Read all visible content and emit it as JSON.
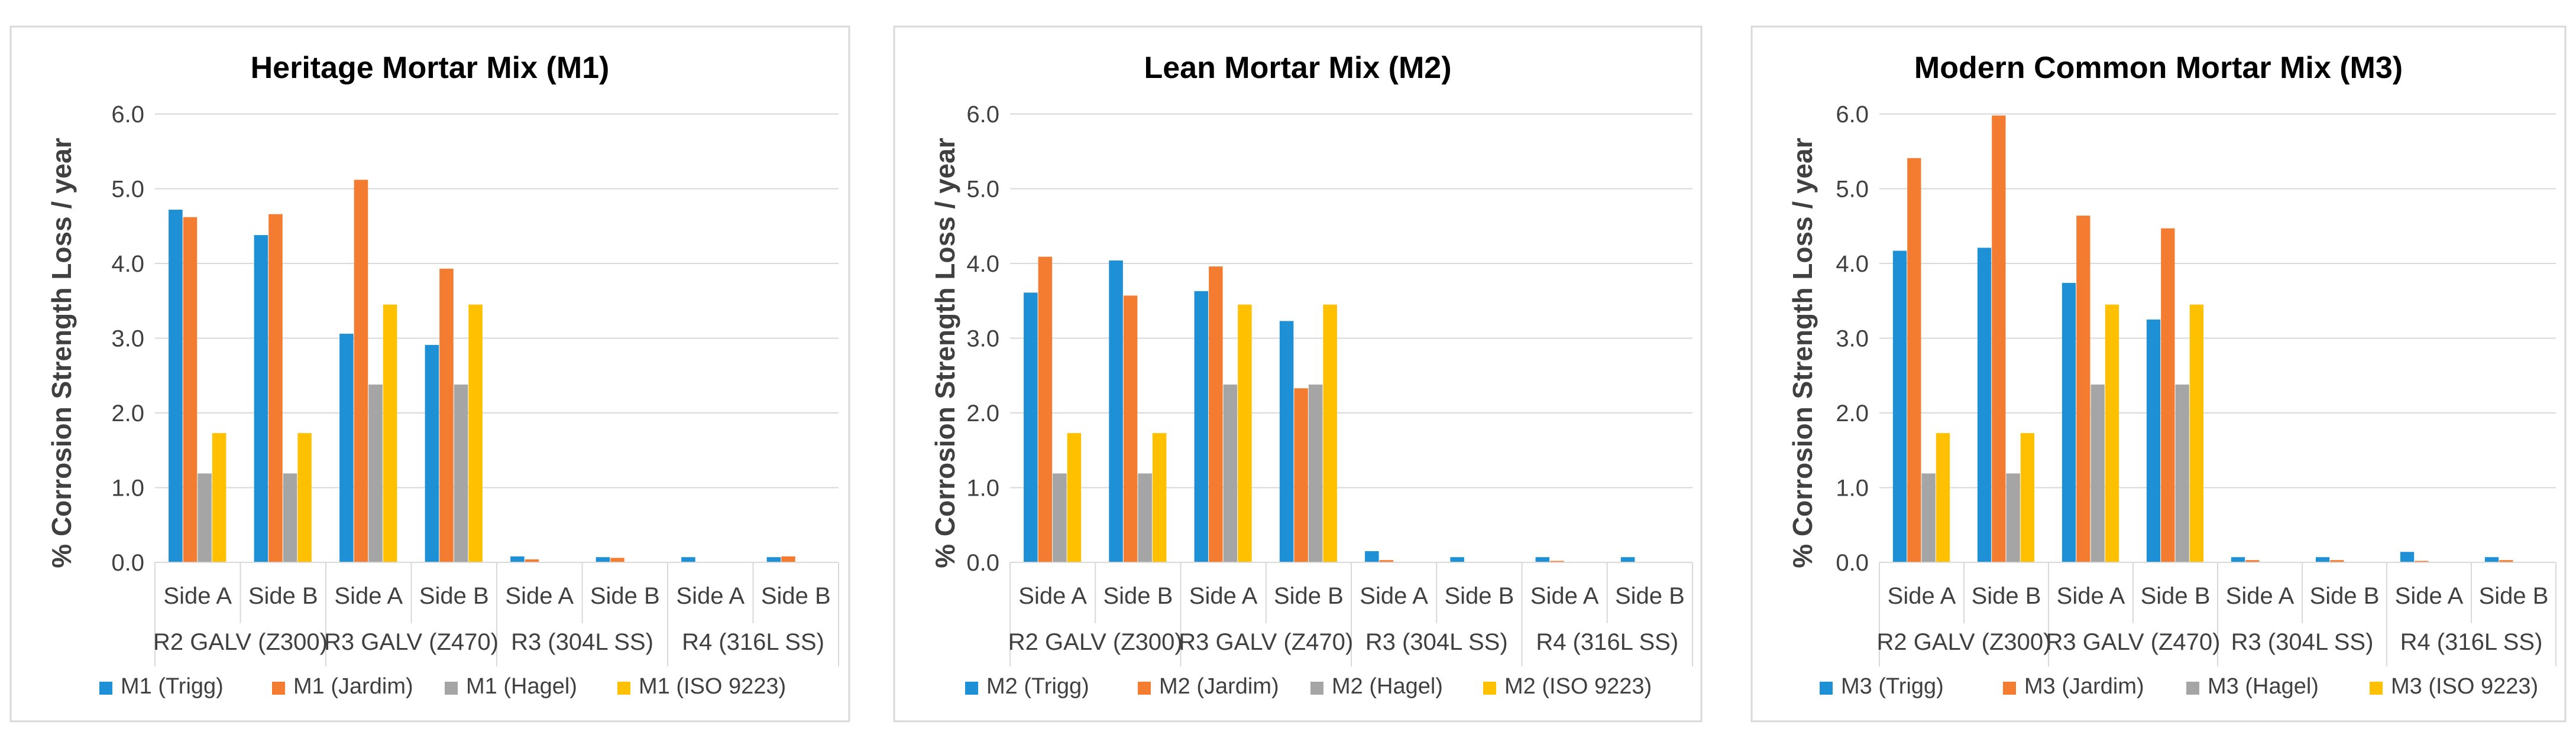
{
  "charts": [
    {
      "chart_data": {
        "type": "bar",
        "title": "Heritage Mortar Mix (M1)",
        "ylabel": "% Corrosion Strength Loss / year",
        "xlabel": "",
        "ylim": [
          0,
          6.0
        ],
        "yticks": [
          "0.0",
          "1.0",
          "2.0",
          "3.0",
          "4.0",
          "5.0",
          "6.0"
        ],
        "categories": [
          "Side A",
          "Side B",
          "Side A",
          "Side B",
          "Side A",
          "Side B",
          "Side A",
          "Side B"
        ],
        "groups": [
          "R2 GALV (Z300)",
          "R3 GALV (Z470)",
          "R3 (304L SS)",
          "R4 (316L SS)"
        ],
        "series": [
          {
            "name": "M1 (Trigg)",
            "values": [
              4.72,
              4.38,
              3.06,
              2.91,
              0.08,
              0.07,
              0.07,
              0.07
            ]
          },
          {
            "name": "M1 (Jardim)",
            "values": [
              4.62,
              4.66,
              5.12,
              3.93,
              0.04,
              0.06,
              0.0,
              0.08
            ]
          },
          {
            "name": "M1 (Hagel)",
            "values": [
              1.19,
              1.19,
              2.38,
              2.38,
              0.0,
              0.0,
              0.0,
              0.0
            ]
          },
          {
            "name": "M1 (ISO 9223)",
            "values": [
              1.73,
              1.73,
              3.45,
              3.45,
              0.0,
              0.0,
              0.0,
              0.0
            ]
          }
        ],
        "legend": "bottom",
        "grid": true
      }
    },
    {
      "chart_data": {
        "type": "bar",
        "title": "Lean Mortar Mix (M2)",
        "ylabel": "% Corrosion Strength Loss / year",
        "xlabel": "",
        "ylim": [
          0,
          6.0
        ],
        "yticks": [
          "0.0",
          "1.0",
          "2.0",
          "3.0",
          "4.0",
          "5.0",
          "6.0"
        ],
        "categories": [
          "Side A",
          "Side B",
          "Side A",
          "Side B",
          "Side A",
          "Side B",
          "Side A",
          "Side B"
        ],
        "groups": [
          "R2 GALV (Z300)",
          "R3 GALV (Z470)",
          "R3 (304L SS)",
          "R4 (316L SS)"
        ],
        "series": [
          {
            "name": "M2 (Trigg)",
            "values": [
              3.61,
              4.04,
              3.63,
              3.23,
              0.15,
              0.07,
              0.07,
              0.07
            ]
          },
          {
            "name": "M2 (Jardim)",
            "values": [
              4.09,
              3.57,
              3.96,
              2.33,
              0.03,
              0.0,
              0.02,
              0.0
            ]
          },
          {
            "name": "M2 (Hagel)",
            "values": [
              1.19,
              1.19,
              2.38,
              2.38,
              0.0,
              0.0,
              0.0,
              0.0
            ]
          },
          {
            "name": "M2 (ISO 9223)",
            "values": [
              1.73,
              1.73,
              3.45,
              3.45,
              0.0,
              0.0,
              0.0,
              0.0
            ]
          }
        ],
        "legend": "bottom",
        "grid": true
      }
    },
    {
      "chart_data": {
        "type": "bar",
        "title": "Modern Common Mortar Mix (M3)",
        "ylabel": "% Corrosion Strength Loss / year",
        "xlabel": "",
        "ylim": [
          0,
          6.0
        ],
        "yticks": [
          "0.0",
          "1.0",
          "2.0",
          "3.0",
          "4.0",
          "5.0",
          "6.0"
        ],
        "categories": [
          "Side A",
          "Side B",
          "Side A",
          "Side B",
          "Side A",
          "Side B",
          "Side A",
          "Side B"
        ],
        "groups": [
          "R2 GALV (Z300)",
          "R3 GALV (Z470)",
          "R3 (304L SS)",
          "R4 (316L SS)"
        ],
        "series": [
          {
            "name": "M3 (Trigg)",
            "values": [
              4.17,
              4.21,
              3.74,
              3.25,
              0.07,
              0.07,
              0.14,
              0.07
            ]
          },
          {
            "name": "M3 (Jardim)",
            "values": [
              5.41,
              5.98,
              4.64,
              4.47,
              0.03,
              0.03,
              0.02,
              0.03
            ]
          },
          {
            "name": "M3 (Hagel)",
            "values": [
              1.19,
              1.19,
              2.38,
              2.38,
              0.0,
              0.0,
              0.0,
              0.0
            ]
          },
          {
            "name": "M3 (ISO 9223)",
            "values": [
              1.73,
              1.73,
              3.45,
              3.45,
              0.0,
              0.0,
              0.0,
              0.0
            ]
          }
        ],
        "legend": "bottom",
        "grid": true
      }
    }
  ],
  "colors": {
    "series": [
      "#1E90D6",
      "#F47C30",
      "#A5A5A5",
      "#FFC000"
    ],
    "grid": "#D9D9D9",
    "text": "#404040",
    "title": "#000000",
    "border": "#D9D9D9"
  }
}
